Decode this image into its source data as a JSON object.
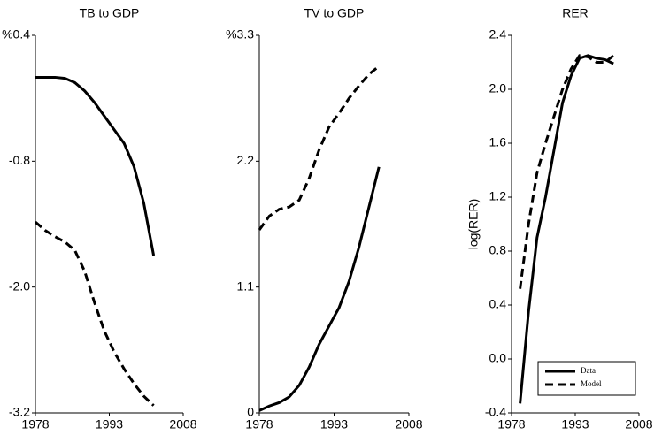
{
  "chart_data": [
    {
      "type": "line",
      "title": "TB to GDP",
      "x": [
        1978,
        1980,
        1982,
        1984,
        1986,
        1988,
        1990,
        1992,
        1994,
        1996,
        1998,
        2000,
        2002
      ],
      "series": [
        {
          "name": "Data",
          "color": "#000000",
          "line_style": "solid",
          "values": [
            0.0,
            0.0,
            0.0,
            -0.01,
            -0.05,
            -0.13,
            -0.24,
            -0.37,
            -0.5,
            -0.63,
            -0.85,
            -1.2,
            -1.7
          ]
        },
        {
          "name": "Model",
          "color": "#000000",
          "line_style": "dashed",
          "values": [
            -1.38,
            -1.46,
            -1.52,
            -1.57,
            -1.65,
            -1.85,
            -2.15,
            -2.42,
            -2.62,
            -2.78,
            -2.92,
            -3.04,
            -3.13
          ]
        }
      ],
      "xlim": [
        1978,
        2008
      ],
      "xticks": [
        1978,
        1993,
        2008
      ],
      "ylim": [
        -3.2,
        0.4
      ],
      "yticks": [
        {
          "value": 0.4,
          "label": "%0.4"
        },
        -0.8,
        {
          "value": -2,
          "label": "-2.0"
        },
        -3.2
      ]
    },
    {
      "type": "line",
      "title": "TV to GDP",
      "x": [
        1978,
        1980,
        1982,
        1984,
        1986,
        1988,
        1990,
        1992,
        1994,
        1996,
        1998,
        2000,
        2002
      ],
      "series": [
        {
          "name": "Data",
          "color": "#000000",
          "line_style": "solid",
          "values": [
            0.02,
            0.06,
            0.09,
            0.14,
            0.24,
            0.4,
            0.6,
            0.76,
            0.92,
            1.15,
            1.45,
            1.8,
            2.15
          ]
        },
        {
          "name": "Model",
          "color": "#000000",
          "line_style": "dashed",
          "values": [
            1.6,
            1.72,
            1.78,
            1.8,
            1.86,
            2.05,
            2.3,
            2.5,
            2.62,
            2.75,
            2.86,
            2.96,
            3.03
          ]
        }
      ],
      "xlim": [
        1978,
        2008
      ],
      "xticks": [
        1978,
        1993,
        2008
      ],
      "ylim": [
        0,
        3.3
      ],
      "yticks": [
        {
          "value": 3.3,
          "label": "%3.3"
        },
        2.2,
        1.1,
        0
      ]
    },
    {
      "type": "line",
      "title": "RER",
      "y_label": "log(RER)",
      "x": [
        1980,
        1982,
        1984,
        1986,
        1988,
        1990,
        1992,
        1994,
        1996,
        1998,
        2000,
        2002
      ],
      "series": [
        {
          "name": "Data",
          "color": "#000000",
          "line_style": "solid",
          "values": [
            -0.33,
            0.35,
            0.9,
            1.2,
            1.55,
            1.9,
            2.1,
            2.23,
            2.25,
            2.23,
            2.22,
            2.19
          ]
        },
        {
          "name": "Model",
          "color": "#000000",
          "line_style": "dashed",
          "values": [
            0.52,
            1.0,
            1.38,
            1.6,
            1.8,
            2.0,
            2.15,
            2.25,
            2.24,
            2.2,
            2.2,
            2.25
          ]
        }
      ],
      "xlim": [
        1978,
        2008
      ],
      "xticks": [
        1978,
        1993,
        2008
      ],
      "ylim": [
        -0.4,
        2.4
      ],
      "yticks": [
        -0.4,
        {
          "value": 0,
          "label": "0.0"
        },
        0.4,
        0.8,
        1.2,
        1.6,
        {
          "value": 2,
          "label": "2.0"
        },
        2.4
      ],
      "legend": "lower right"
    }
  ]
}
